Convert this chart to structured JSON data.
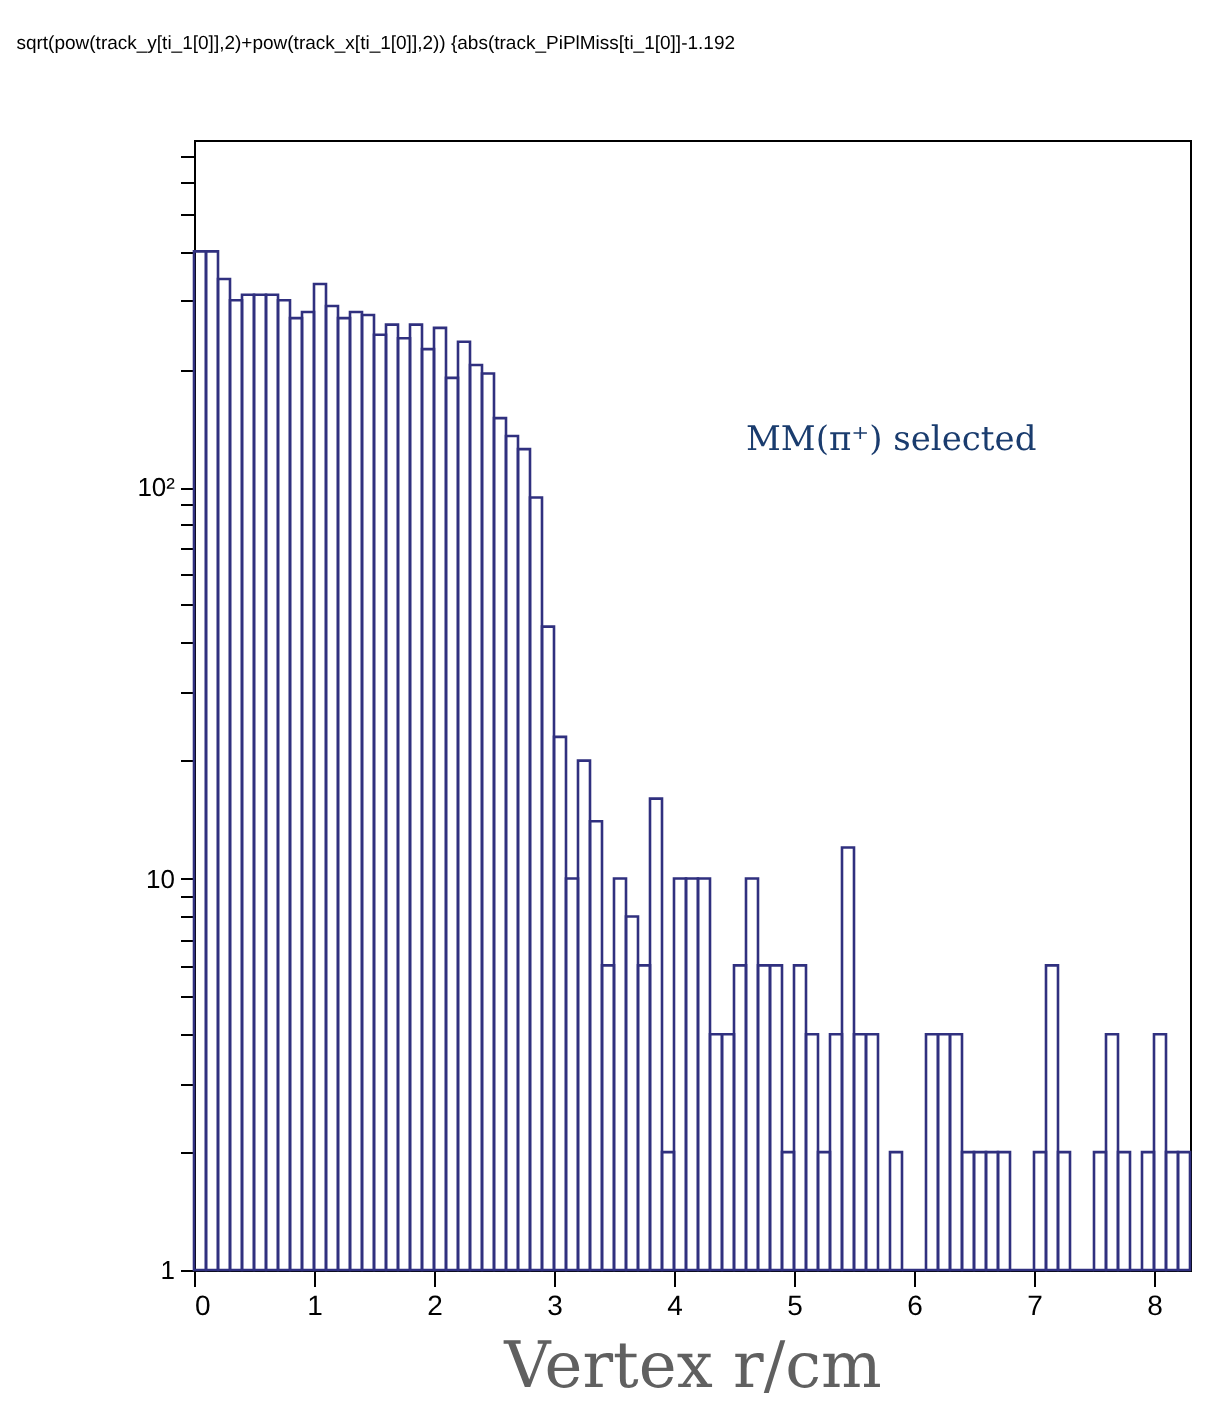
{
  "chart_data": {
    "type": "histogram",
    "title": "sqrt(pow(track_y[ti_1[0]],2)+pow(track_x[ti_1[0]],2)) {abs(track_PiPlMiss[ti_1[0]]-1.192",
    "xlabel": "Vertex r/cm",
    "annotations": [
      "MM(π⁺) selected"
    ],
    "bins": [
      0,
      0.1,
      0.2,
      0.3,
      0.4,
      0.5,
      0.6,
      0.7,
      0.8,
      0.9,
      1,
      1.1,
      1.2,
      1.3,
      1.4,
      1.5,
      1.6,
      1.7,
      1.8,
      1.9,
      2,
      2.1,
      2.2,
      2.3,
      2.4,
      2.5,
      2.6,
      2.7,
      2.8,
      2.9,
      3,
      3.1,
      3.2,
      3.3,
      3.4,
      3.5,
      3.6,
      3.7,
      3.8,
      3.9,
      4,
      4.1,
      4.2,
      4.3,
      4.4,
      4.5,
      4.6,
      4.7,
      4.8,
      4.9,
      5,
      5.1,
      5.2,
      5.3,
      5.4,
      5.5,
      5.6,
      5.7,
      5.8,
      5.9,
      6,
      6.1,
      6.2,
      6.3,
      6.4,
      6.5,
      6.6,
      6.7,
      6.8,
      6.9,
      7,
      7.1,
      7.2,
      7.3,
      7.4,
      7.5,
      7.6,
      7.7,
      7.8,
      7.9,
      8,
      8.1,
      8.2,
      8.3
    ],
    "values": [
      400,
      400,
      340,
      300,
      310,
      310,
      310,
      300,
      270,
      280,
      330,
      290,
      270,
      280,
      275,
      245,
      260,
      240,
      260,
      225,
      255,
      190,
      235,
      205,
      195,
      150,
      135,
      125,
      94,
      44,
      23,
      10,
      20,
      14,
      6,
      10,
      8,
      6,
      16,
      2,
      10,
      10,
      10,
      4,
      4,
      6,
      10,
      6,
      6,
      2,
      6,
      4,
      2,
      4,
      12,
      4,
      4,
      1,
      2,
      1,
      1,
      4,
      4,
      4,
      2,
      2,
      2,
      2,
      1,
      1,
      2,
      6,
      2,
      1,
      1,
      2,
      4,
      2,
      1,
      2,
      4,
      2,
      2
    ],
    "color": "#30307f",
    "log": true,
    "xlim": [
      0,
      8.3
    ],
    "xticks": [
      0,
      1,
      2,
      3,
      4,
      5,
      6,
      7,
      8
    ],
    "ylim": [
      1,
      770
    ],
    "yticks": [
      1,
      {
        "value": 2,
        "label": null
      },
      {
        "value": 3,
        "label": null
      },
      {
        "value": 4,
        "label": null
      },
      {
        "value": 5,
        "label": null
      },
      {
        "value": 6,
        "label": null
      },
      {
        "value": 7,
        "label": null
      },
      {
        "value": 8,
        "label": null
      },
      {
        "value": 9,
        "label": null
      },
      10,
      {
        "value": 20,
        "label": null
      },
      {
        "value": 30,
        "label": null
      },
      {
        "value": 40,
        "label": null
      },
      {
        "value": 50,
        "label": null
      },
      {
        "value": 60,
        "label": null
      },
      {
        "value": 70,
        "label": null
      },
      {
        "value": 80,
        "label": null
      },
      {
        "value": 90,
        "label": null
      },
      {
        "value": 100,
        "label": "10²"
      },
      {
        "value": 200,
        "label": null
      },
      {
        "value": 300,
        "label": null
      },
      {
        "value": 400,
        "label": null
      },
      {
        "value": 500,
        "label": null
      },
      {
        "value": 600,
        "label": null
      },
      {
        "value": 700,
        "label": null
      }
    ]
  }
}
